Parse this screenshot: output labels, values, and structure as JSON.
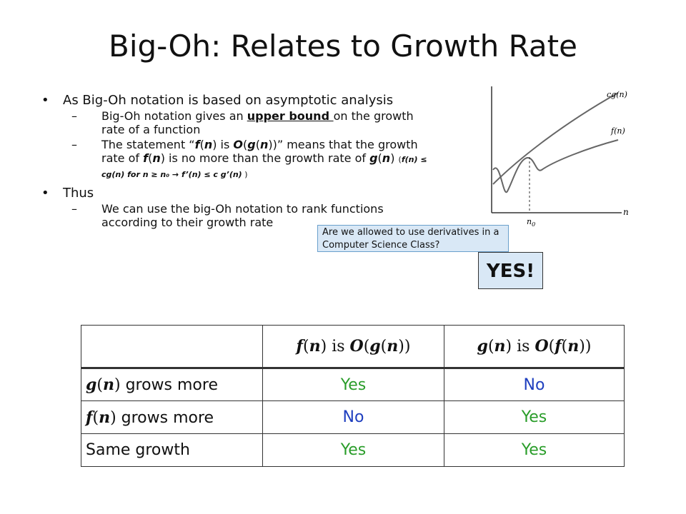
{
  "title": "Big-Oh: Relates to Growth Rate",
  "bullets": {
    "b1": "As Big-Oh notation is based on asymptotic analysis",
    "s1_a": "Big-Oh notation gives an ",
    "s1_u": "upper bound ",
    "s1_b": "on the growth rate of a function",
    "s2_a": "The statement “",
    "s2_f": "f",
    "s2_n": "n",
    "s2_is": " is ",
    "s2_O": "O",
    "s2_g": "g",
    "s2_c": "” means that the growth rate of ",
    "s2_d": " is no more than the growth rate of ",
    "s2_small": "f(n) ≤ cg(n)  for n ≥ n₀ → f’(n) ≤ c g’(n)",
    "b2": "Thus",
    "s3": "We can use the big-Oh notation to rank functions according to their growth rate"
  },
  "graph": {
    "cg_label": "cg(n)",
    "f_label": "f(n)",
    "n0_label": "n",
    "n0_sub": "0",
    "x_label": "n"
  },
  "callout": "Are we allowed to use derivatives in a Computer Science Class?",
  "yes_box": "YES!",
  "table": {
    "h1_f": "f",
    "h1_n": "n",
    "h1_is": " is ",
    "h1_O": "O",
    "h1_g": "g",
    "h2_g": "g",
    "h2_n": "n",
    "h2_is": " is ",
    "h2_O": "O",
    "h2_f": "f",
    "rows": [
      {
        "label_var": "g",
        "label_n": "n",
        "label_rest": " grows more",
        "v1": "Yes",
        "v2": "No"
      },
      {
        "label_var": "f",
        "label_n": "n",
        "label_rest": " grows more",
        "v1": "No",
        "v2": "Yes"
      },
      {
        "label": "Same growth",
        "v1": "Yes",
        "v2": "Yes"
      }
    ]
  },
  "colors": {
    "yes": "#2a9d2a",
    "no": "#1f3fbf",
    "callout_bg": "#d9e8f6"
  }
}
